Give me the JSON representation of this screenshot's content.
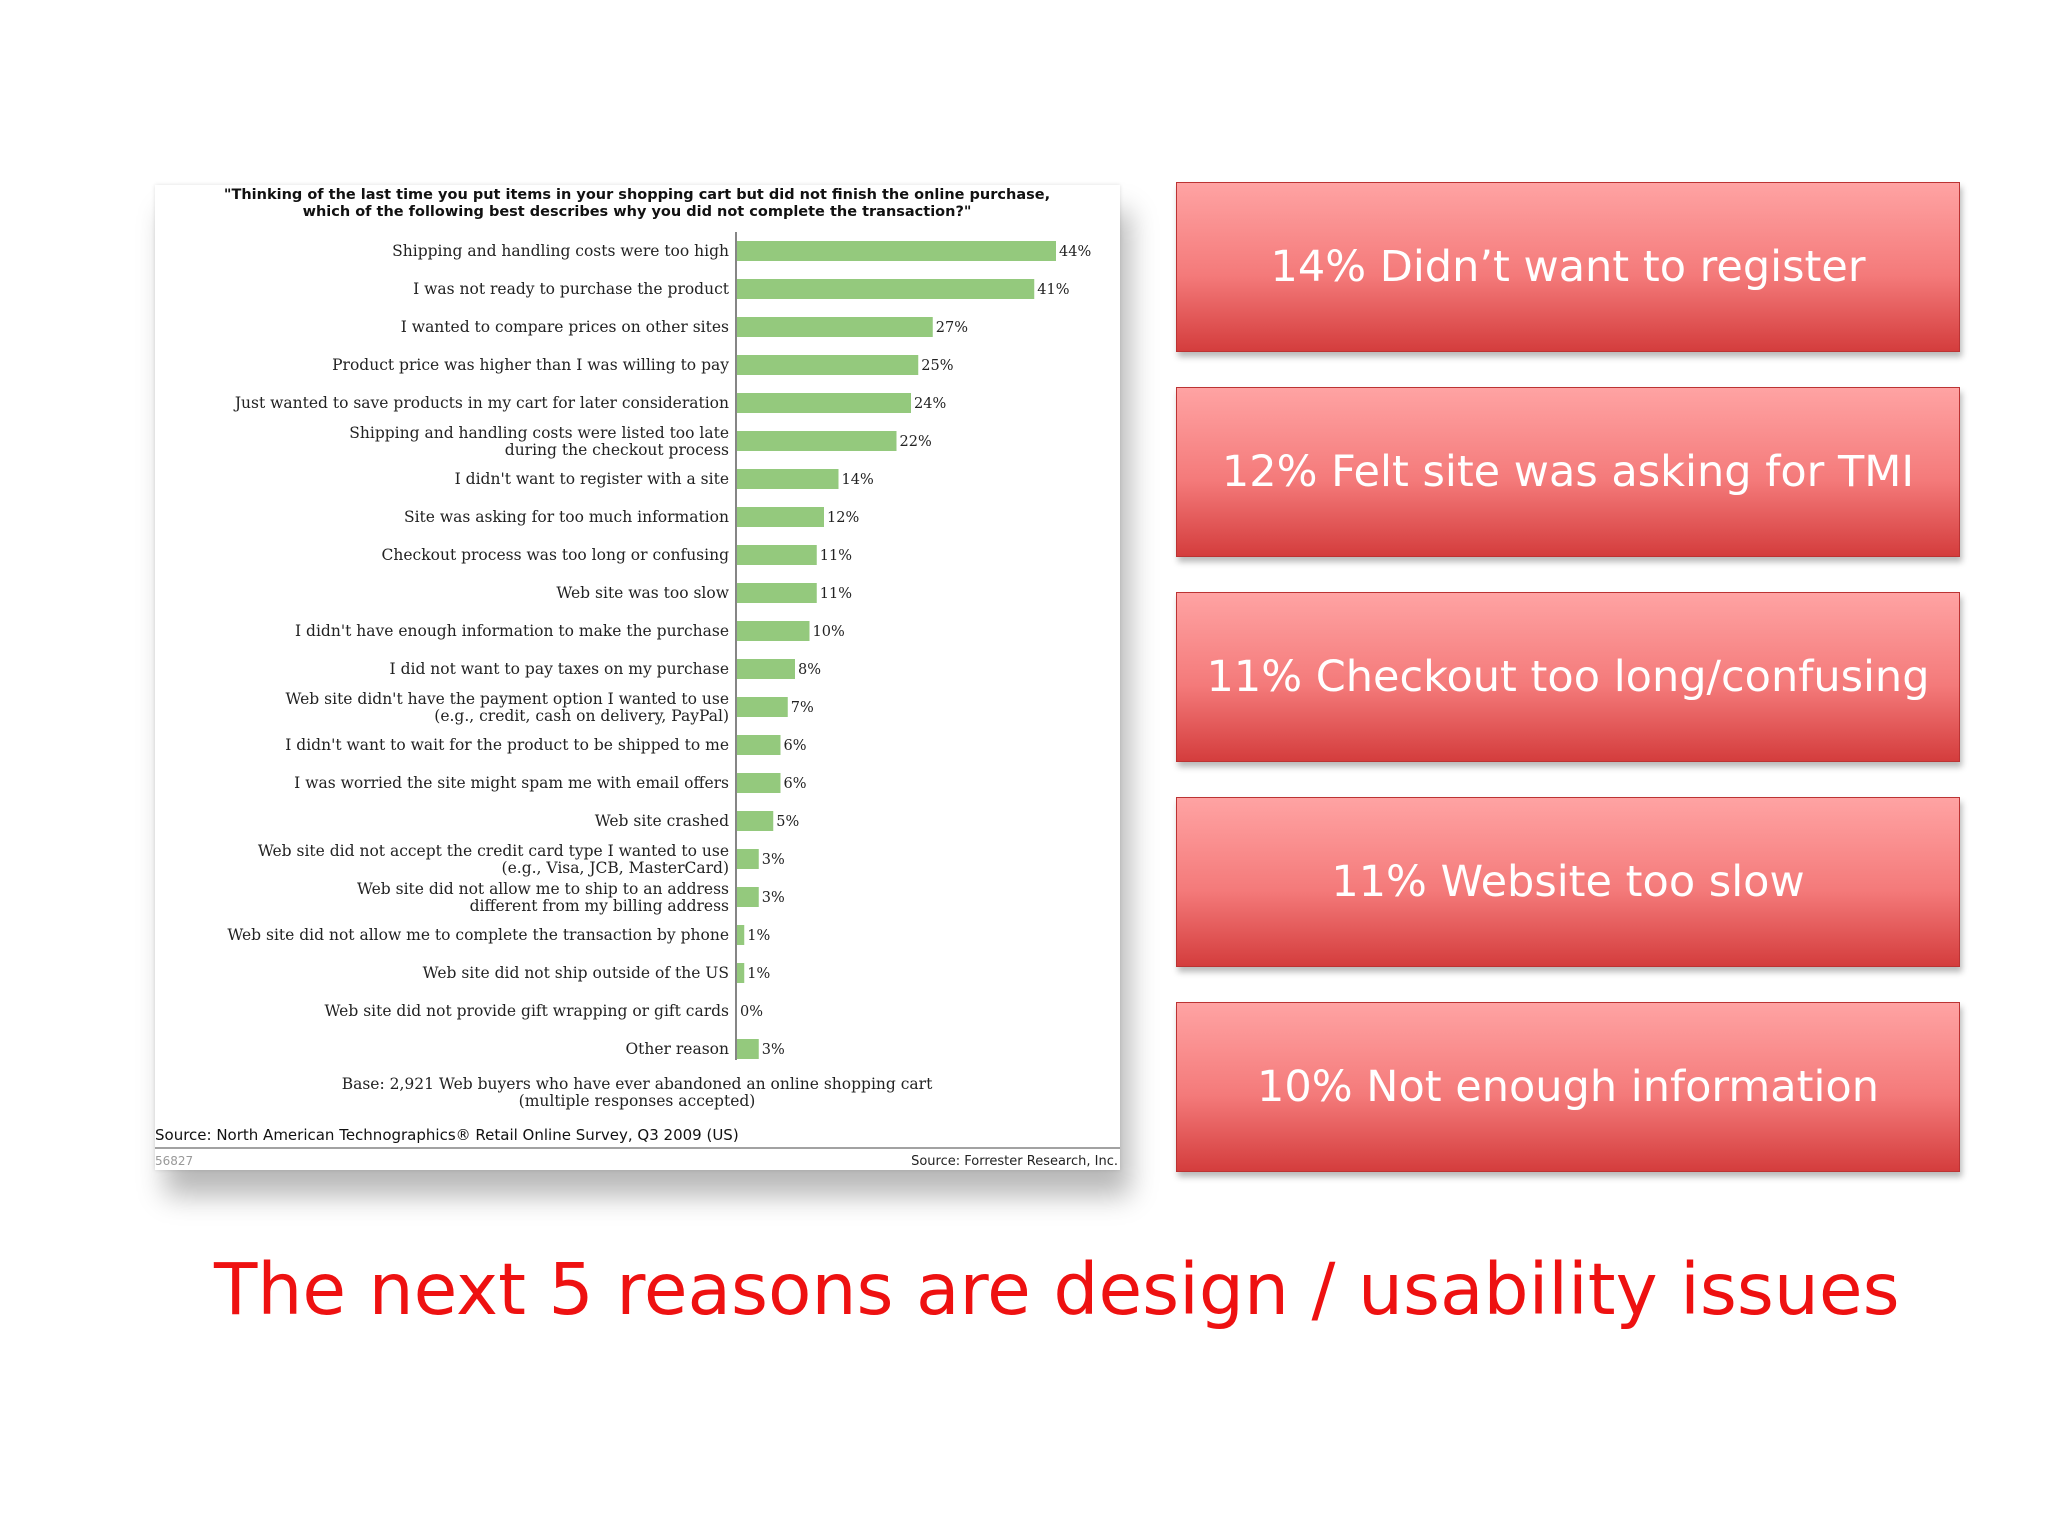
{
  "chart_data": {
    "type": "bar",
    "orientation": "horizontal",
    "title": "\"Thinking of the last time you put items in your shopping cart but did not finish the online purchase, which of the following best describes why you did not complete the transaction?\"",
    "title_lines": [
      "\"Thinking of the last time you put items in your shopping cart but did not finish the online purchase,",
      "which of the following best describes why you did not complete the transaction?\""
    ],
    "categories": [
      [
        "Shipping and handling costs were too high"
      ],
      [
        "I was not ready to purchase the product"
      ],
      [
        "I wanted to compare prices on other sites"
      ],
      [
        "Product price was higher than I was willing to pay"
      ],
      [
        "Just wanted to save products in my cart for later consideration"
      ],
      [
        "Shipping and handling costs were listed too late",
        "during the checkout process"
      ],
      [
        "I didn't want to register with a site"
      ],
      [
        "Site was asking for too much information"
      ],
      [
        "Checkout process was too long or confusing"
      ],
      [
        "Web site was too slow"
      ],
      [
        "I didn't have enough information to make the purchase"
      ],
      [
        "I did not want to pay taxes on my purchase"
      ],
      [
        "Web site didn't have the payment option I wanted to use",
        "(e.g., credit, cash on delivery, PayPal)"
      ],
      [
        "I didn't want to wait for the product to be shipped to me"
      ],
      [
        "I was worried the site might spam me with email offers"
      ],
      [
        "Web site crashed"
      ],
      [
        "Web site did not accept the credit card type I wanted to use",
        "(e.g., Visa, JCB, MasterCard)"
      ],
      [
        "Web site did not allow me to ship to an address",
        "different from my billing address"
      ],
      [
        "Web site did not allow me to complete the transaction by phone"
      ],
      [
        "Web site did not ship outside of the US"
      ],
      [
        "Web site did not provide gift wrapping or gift cards"
      ],
      [
        "Other reason"
      ]
    ],
    "values": [
      44,
      41,
      27,
      25,
      24,
      22,
      14,
      12,
      11,
      11,
      10,
      8,
      7,
      6,
      6,
      5,
      3,
      3,
      1,
      1,
      0,
      3
    ],
    "value_labels": [
      "44%",
      "41%",
      "27%",
      "25%",
      "24%",
      "22%",
      "14%",
      "12%",
      "11%",
      "11%",
      "10%",
      "8%",
      "7%",
      "6%",
      "6%",
      "5%",
      "3%",
      "3%",
      "1%",
      "1%",
      "0%",
      "3%"
    ],
    "bar_color": "#94c97d",
    "xlim": [
      0,
      44
    ],
    "grid": false,
    "base_note_lines": [
      "Base: 2,921 Web buyers who have ever abandoned an online shopping cart",
      "(multiple responses accepted)"
    ],
    "source_line": "Source: North American Technographics® Retail Online Survey, Q3 2009 (US)",
    "figure_id": "56827",
    "credit": "Source: Forrester Research, Inc."
  },
  "callouts": [
    "14% Didn’t want to register",
    "12% Felt site was asking for TMI",
    "11% Checkout too long/confusing",
    "11% Website too slow",
    "10% Not enough information"
  ],
  "bottom_text": "The next 5 reasons are design / usability issues",
  "colors": {
    "callout_text": "#ffffff",
    "bottom_text": "#ee1111"
  }
}
